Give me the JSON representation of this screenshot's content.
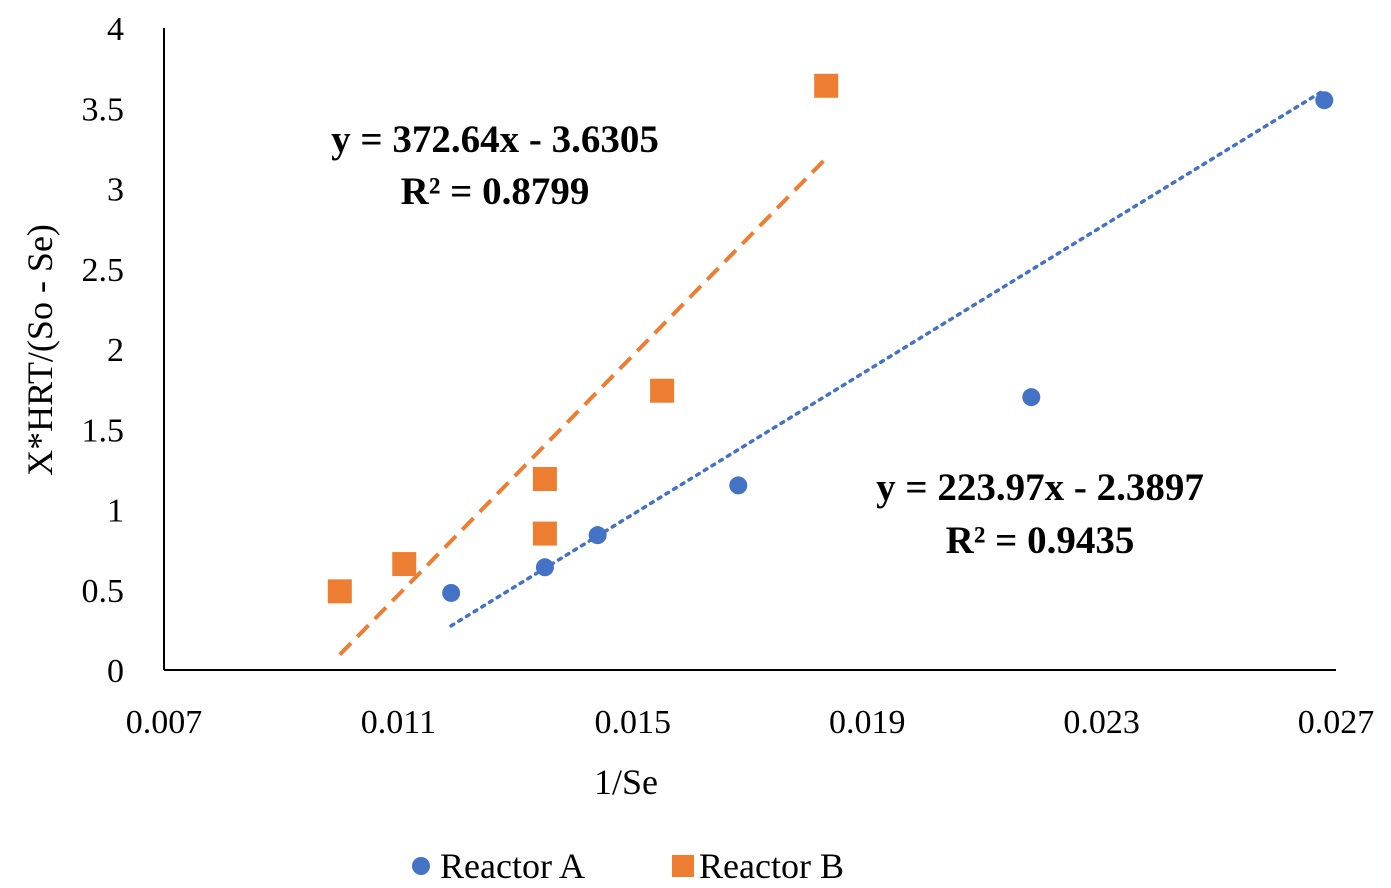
{
  "chart_data": {
    "type": "scatter",
    "title": "",
    "xlabel": "1/Se",
    "ylabel": "X*HRT/(So - Se)",
    "xlim": [
      0.007,
      0.027
    ],
    "ylim": [
      0,
      4
    ],
    "x_ticks": [
      "0.007",
      "0.011",
      "0.015",
      "0.019",
      "0.023",
      "0.027"
    ],
    "y_ticks": [
      "0",
      "0.5",
      "1",
      "1.5",
      "2",
      "2.5",
      "3",
      "3.5",
      "4"
    ],
    "grid": false,
    "legend_position": "bottom",
    "series": [
      {
        "name": "Reactor A",
        "marker": "circle",
        "color": "#4472C4",
        "points": [
          {
            "x": 0.0119,
            "y": 0.48
          },
          {
            "x": 0.0135,
            "y": 0.64
          },
          {
            "x": 0.0144,
            "y": 0.84
          },
          {
            "x": 0.0168,
            "y": 1.15
          },
          {
            "x": 0.0218,
            "y": 1.7
          },
          {
            "x": 0.0268,
            "y": 3.55
          }
        ],
        "trendline": {
          "style": "dotted",
          "slope": 223.97,
          "intercept": -2.3897,
          "x_range": [
            0.0119,
            0.0268
          ],
          "equation": "y = 223.97x - 2.3897",
          "r_squared": "R² = 0.9435"
        }
      },
      {
        "name": "Reactor B",
        "marker": "square",
        "color": "#ED7D31",
        "points": [
          {
            "x": 0.01,
            "y": 0.49
          },
          {
            "x": 0.0111,
            "y": 0.66
          },
          {
            "x": 0.0135,
            "y": 0.85
          },
          {
            "x": 0.0135,
            "y": 1.19
          },
          {
            "x": 0.0155,
            "y": 1.74
          },
          {
            "x": 0.0183,
            "y": 3.64
          }
        ],
        "trendline": {
          "style": "dashed",
          "slope": 372.64,
          "intercept": -3.6305,
          "x_range": [
            0.01,
            0.0183
          ],
          "equation": "y = 372.64x - 3.6305",
          "r_squared": "R² = 0.8799"
        }
      }
    ]
  }
}
